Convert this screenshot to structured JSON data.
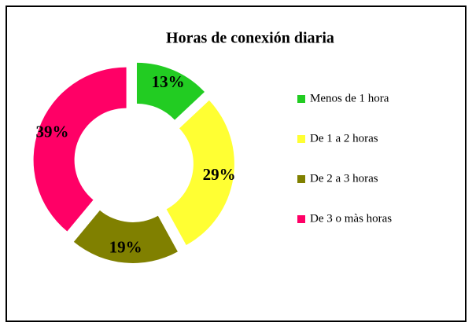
{
  "chart_data": {
    "type": "doughnut",
    "title": "Horas de conexión diaria",
    "categories": [
      "Menos de 1 hora",
      "De 1 a 2 horas",
      "De 2 a 3 horas",
      "De 3 o màs horas"
    ],
    "values": [
      13,
      29,
      19,
      39
    ],
    "value_labels": [
      "13%",
      "29%",
      "19%",
      "39%"
    ],
    "colors": [
      "#22cc22",
      "#ffff33",
      "#808000",
      "#ff0066"
    ],
    "legend": "right"
  }
}
